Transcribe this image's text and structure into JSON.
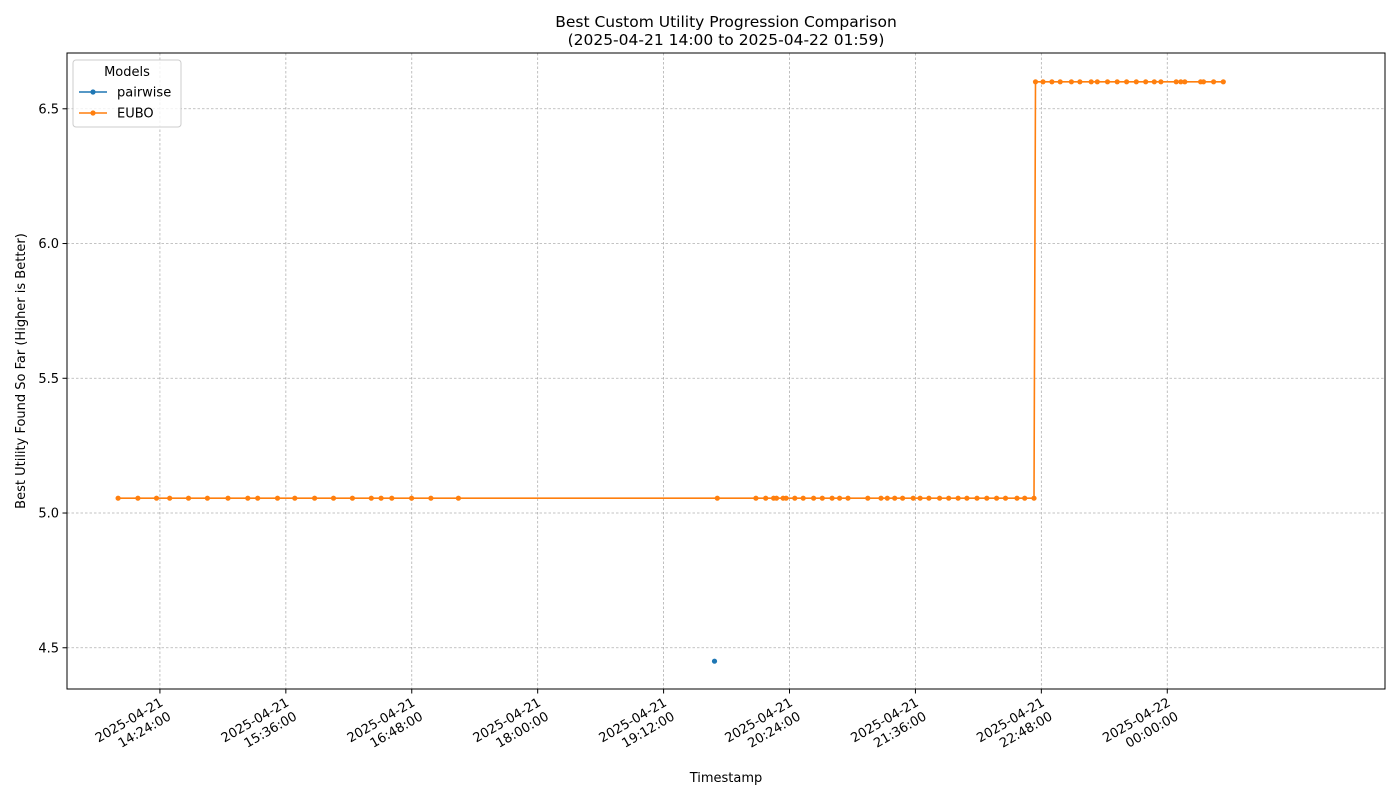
{
  "chart_data": {
    "type": "line",
    "title": "Best Custom Utility Progression Comparison",
    "subtitle": "(2025-04-21 14:00 to 2025-04-22 01:59)",
    "xlabel": "Timestamp",
    "ylabel": "Best Utility Found So Far (Higher is Better)",
    "x_type": "datetime",
    "xlim": [
      "2025-04-21T13:30:52",
      "2025-04-22T02:04:30"
    ],
    "ylim": [
      4.347,
      6.707
    ],
    "x_ticks": [
      {
        "value": "2025-04-21T14:24:00",
        "label": [
          "2025-04-21",
          "14:24:00"
        ]
      },
      {
        "value": "2025-04-21T15:36:00",
        "label": [
          "2025-04-21",
          "15:36:00"
        ]
      },
      {
        "value": "2025-04-21T16:48:00",
        "label": [
          "2025-04-21",
          "16:48:00"
        ]
      },
      {
        "value": "2025-04-21T18:00:00",
        "label": [
          "2025-04-21",
          "18:00:00"
        ]
      },
      {
        "value": "2025-04-21T19:12:00",
        "label": [
          "2025-04-21",
          "19:12:00"
        ]
      },
      {
        "value": "2025-04-21T20:24:00",
        "label": [
          "2025-04-21",
          "20:24:00"
        ]
      },
      {
        "value": "2025-04-21T21:36:00",
        "label": [
          "2025-04-21",
          "21:36:00"
        ]
      },
      {
        "value": "2025-04-21T22:48:00",
        "label": [
          "2025-04-21",
          "22:48:00"
        ]
      },
      {
        "value": "2025-04-22T00:00:00",
        "label": [
          "2025-04-22",
          "00:00:00"
        ]
      }
    ],
    "y_ticks": [
      4.5,
      5.0,
      5.5,
      6.0,
      6.5
    ],
    "y_tick_labels": [
      "4.5",
      "5.0",
      "5.5",
      "6.0",
      "6.5"
    ],
    "grid": true,
    "legend": {
      "title": "Models",
      "position": "top-left"
    },
    "series": [
      {
        "name": "pairwise",
        "color": "#1f77b4",
        "marker": "circle",
        "points": [
          {
            "x": "2025-04-21T19:41:08",
            "y": 4.45
          }
        ]
      },
      {
        "name": "EUBO",
        "color": "#ff7f0e",
        "marker": "circle",
        "points": [
          {
            "x": "2025-04-21T14:00:05",
            "y": 5.055
          },
          {
            "x": "2025-04-21T14:11:24",
            "y": 5.055
          },
          {
            "x": "2025-04-21T14:22:04",
            "y": 5.055
          },
          {
            "x": "2025-04-21T14:29:35",
            "y": 5.055
          },
          {
            "x": "2025-04-21T14:40:22",
            "y": 5.055
          },
          {
            "x": "2025-04-21T14:51:10",
            "y": 5.055
          },
          {
            "x": "2025-04-21T15:02:57",
            "y": 5.055
          },
          {
            "x": "2025-04-21T15:14:16",
            "y": 5.055
          },
          {
            "x": "2025-04-21T15:19:54",
            "y": 5.055
          },
          {
            "x": "2025-04-21T15:31:13",
            "y": 5.055
          },
          {
            "x": "2025-04-21T15:41:09",
            "y": 5.055
          },
          {
            "x": "2025-04-21T15:52:28",
            "y": 5.055
          },
          {
            "x": "2025-04-21T16:03:16",
            "y": 5.055
          },
          {
            "x": "2025-04-21T16:14:03",
            "y": 5.055
          },
          {
            "x": "2025-04-21T16:24:51",
            "y": 5.055
          },
          {
            "x": "2025-04-21T16:30:29",
            "y": 5.055
          },
          {
            "x": "2025-04-21T16:36:36",
            "y": 5.055
          },
          {
            "x": "2025-04-21T16:47:55",
            "y": 5.055
          },
          {
            "x": "2025-04-21T16:58:56",
            "y": 5.055
          },
          {
            "x": "2025-04-21T17:14:39",
            "y": 5.055
          },
          {
            "x": "2025-04-21T19:42:43",
            "y": 5.055
          },
          {
            "x": "2025-04-21T20:04:46",
            "y": 5.055
          },
          {
            "x": "2025-04-21T20:10:24",
            "y": 5.055
          },
          {
            "x": "2025-04-21T20:14:54",
            "y": 5.055
          },
          {
            "x": "2025-04-21T20:16:32",
            "y": 5.055
          },
          {
            "x": "2025-04-21T20:20:19",
            "y": 5.055
          },
          {
            "x": "2025-04-21T20:22:02",
            "y": 5.055
          },
          {
            "x": "2025-04-21T20:27:02",
            "y": 5.055
          },
          {
            "x": "2025-04-21T20:31:49",
            "y": 5.055
          },
          {
            "x": "2025-04-21T20:37:45",
            "y": 5.055
          },
          {
            "x": "2025-04-21T20:42:44",
            "y": 5.055
          },
          {
            "x": "2025-04-21T20:48:21",
            "y": 5.055
          },
          {
            "x": "2025-04-21T20:52:37",
            "y": 5.055
          },
          {
            "x": "2025-04-21T20:57:28",
            "y": 5.055
          },
          {
            "x": "2025-04-21T21:08:47",
            "y": 5.055
          },
          {
            "x": "2025-04-21T21:16:18",
            "y": 5.055
          },
          {
            "x": "2025-04-21T21:19:54",
            "y": 5.055
          },
          {
            "x": "2025-04-21T21:24:10",
            "y": 5.055
          },
          {
            "x": "2025-04-21T21:28:40",
            "y": 5.055
          },
          {
            "x": "2025-04-21T21:34:42",
            "y": 5.055
          },
          {
            "x": "2025-04-21T21:38:40",
            "y": 5.055
          },
          {
            "x": "2025-04-21T21:43:42",
            "y": 5.055
          },
          {
            "x": "2025-04-21T21:49:49",
            "y": 5.055
          },
          {
            "x": "2025-04-21T21:55:00",
            "y": 5.055
          },
          {
            "x": "2025-04-21T22:00:23",
            "y": 5.055
          },
          {
            "x": "2025-04-21T22:05:26",
            "y": 5.055
          },
          {
            "x": "2025-04-21T22:11:12",
            "y": 5.055
          },
          {
            "x": "2025-04-21T22:16:49",
            "y": 5.055
          },
          {
            "x": "2025-04-21T22:22:26",
            "y": 5.055
          },
          {
            "x": "2025-04-21T22:27:30",
            "y": 5.055
          },
          {
            "x": "2025-04-21T22:34:04",
            "y": 5.055
          },
          {
            "x": "2025-04-21T22:38:29",
            "y": 5.055
          },
          {
            "x": "2025-04-21T22:43:48",
            "y": 5.055
          },
          {
            "x": "2025-04-21T22:44:40",
            "y": 6.6
          },
          {
            "x": "2025-04-21T22:48:56",
            "y": 6.6
          },
          {
            "x": "2025-04-21T22:54:02",
            "y": 6.6
          },
          {
            "x": "2025-04-21T22:58:47",
            "y": 6.6
          },
          {
            "x": "2025-04-21T23:05:12",
            "y": 6.6
          },
          {
            "x": "2025-04-21T23:10:01",
            "y": 6.6
          },
          {
            "x": "2025-04-21T23:16:31",
            "y": 6.6
          },
          {
            "x": "2025-04-21T23:19:58",
            "y": 6.6
          },
          {
            "x": "2025-04-21T23:25:51",
            "y": 6.6
          },
          {
            "x": "2025-04-21T23:31:22",
            "y": 6.6
          },
          {
            "x": "2025-04-21T23:36:46",
            "y": 6.6
          },
          {
            "x": "2025-04-21T23:42:18",
            "y": 6.6
          },
          {
            "x": "2025-04-21T23:47:41",
            "y": 6.6
          },
          {
            "x": "2025-04-21T23:52:36",
            "y": 6.6
          },
          {
            "x": "2025-04-21T23:56:20",
            "y": 6.6
          },
          {
            "x": "2025-04-22T00:05:07",
            "y": 6.6
          },
          {
            "x": "2025-04-22T00:07:44",
            "y": 6.6
          },
          {
            "x": "2025-04-22T00:10:00",
            "y": 6.6
          },
          {
            "x": "2025-04-22T00:19:04",
            "y": 6.6
          },
          {
            "x": "2025-04-22T00:20:42",
            "y": 6.6
          },
          {
            "x": "2025-04-22T00:26:30",
            "y": 6.6
          },
          {
            "x": "2025-04-22T00:32:03",
            "y": 6.6
          }
        ]
      }
    ]
  }
}
